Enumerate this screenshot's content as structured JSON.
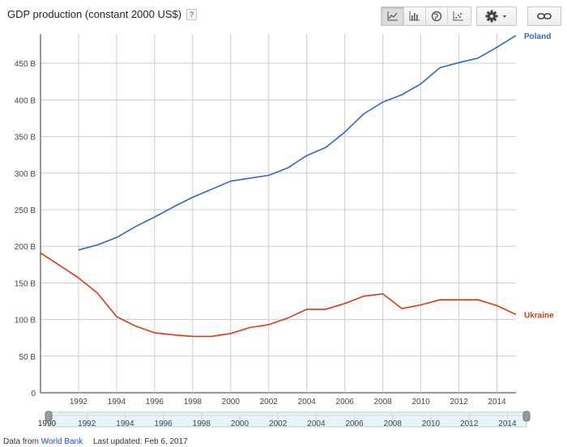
{
  "header": {
    "title": "GDP production (constant 2000 US$)",
    "help_label": "?",
    "chart_type_buttons": [
      {
        "icon": "line-chart-icon"
      },
      {
        "icon": "bar-chart-icon"
      },
      {
        "icon": "globe-map-icon"
      },
      {
        "icon": "scatter-chart-icon"
      }
    ],
    "settings_icon": "gear-icon",
    "link_icon": "chain-link-icon"
  },
  "footer": {
    "data_from_label": "Data from",
    "source_link": "World Bank",
    "last_updated": "Last updated: Feb 6, 2017"
  },
  "colors": {
    "poland": "#3366cc",
    "ukraine": "#dc3912",
    "grid": "#cccccc"
  },
  "chart_data": {
    "type": "line",
    "title": "GDP production (constant 2000 US$)",
    "xlabel": "",
    "ylabel": "",
    "xlim": [
      1990,
      2015
    ],
    "ylim": [
      0,
      490
    ],
    "grid": true,
    "legend": "right-end-labels",
    "x_ticks": [
      1992,
      1994,
      1996,
      1998,
      2000,
      2002,
      2004,
      2006,
      2008,
      2010,
      2012,
      2014
    ],
    "y_ticks": [
      {
        "value": 0,
        "label": "0"
      },
      {
        "value": 50,
        "label": "50 B"
      },
      {
        "value": 100,
        "label": "100 B"
      },
      {
        "value": 150,
        "label": "150 B"
      },
      {
        "value": 200,
        "label": "200 B"
      },
      {
        "value": 250,
        "label": "250 B"
      },
      {
        "value": 300,
        "label": "300 B"
      },
      {
        "value": 350,
        "label": "350 B"
      },
      {
        "value": 400,
        "label": "400 B"
      },
      {
        "value": 450,
        "label": "450 B"
      }
    ],
    "series": [
      {
        "name": "Poland",
        "color": "#3366cc",
        "x": [
          1992,
          1993,
          1994,
          1995,
          1996,
          1997,
          1998,
          1999,
          2000,
          2001,
          2002,
          2003,
          2004,
          2005,
          2006,
          2007,
          2008,
          2009,
          2010,
          2011,
          2012,
          2013,
          2014,
          2015
        ],
        "values": [
          195,
          202,
          212,
          227,
          240,
          254,
          267,
          278,
          289,
          293,
          297,
          307,
          324,
          335,
          356,
          381,
          397,
          407,
          422,
          444,
          451,
          457,
          472,
          488
        ]
      },
      {
        "name": "Ukraine",
        "color": "#dc3912",
        "x": [
          1990,
          1991,
          1992,
          1993,
          1994,
          1995,
          1996,
          1997,
          1998,
          1999,
          2000,
          2001,
          2002,
          2003,
          2004,
          2005,
          2006,
          2007,
          2008,
          2009,
          2010,
          2011,
          2012,
          2013,
          2014,
          2015
        ],
        "values": [
          191,
          174,
          157,
          136,
          104,
          91,
          82,
          79,
          77,
          77,
          81,
          89,
          93,
          102,
          114,
          114,
          122,
          132,
          135,
          115,
          120,
          127,
          127,
          127,
          119,
          107
        ]
      }
    ],
    "range_selector": {
      "start_label": "1990",
      "ticks": [
        1992,
        1994,
        1996,
        1998,
        2000,
        2002,
        2004,
        2006,
        2008,
        2010,
        2012,
        2014
      ]
    }
  }
}
